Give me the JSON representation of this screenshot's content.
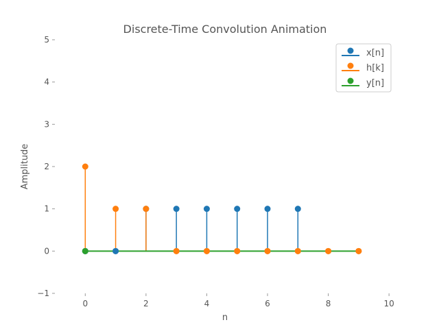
{
  "chart_data": {
    "type": "stem",
    "title": "Discrete-Time Convolution Animation",
    "xlabel": "n",
    "ylabel": "Amplitude",
    "xlim": [
      -1,
      10.2
    ],
    "ylim": [
      -1,
      5
    ],
    "xticks": [
      0,
      2,
      4,
      6,
      8,
      10
    ],
    "yticks": [
      -1,
      0,
      1,
      2,
      3,
      4,
      5
    ],
    "grid": false,
    "legend_position": "top-right",
    "series": [
      {
        "name": "x[n]",
        "color": "#1f77b4",
        "x": [
          0,
          1,
          2,
          3,
          4,
          5,
          6,
          7
        ],
        "y": [
          0,
          0,
          1,
          1,
          1,
          1,
          1,
          1
        ]
      },
      {
        "name": "h[k]",
        "color": "#ff7f0e",
        "x": [
          0,
          1,
          2,
          3,
          4,
          5,
          6,
          7,
          8,
          9
        ],
        "y": [
          2,
          1,
          1,
          0,
          0,
          0,
          0,
          0,
          0,
          0
        ]
      },
      {
        "name": "y[n]",
        "color": "#2ca02c",
        "x": [
          0
        ],
        "y": [
          0
        ]
      }
    ]
  }
}
